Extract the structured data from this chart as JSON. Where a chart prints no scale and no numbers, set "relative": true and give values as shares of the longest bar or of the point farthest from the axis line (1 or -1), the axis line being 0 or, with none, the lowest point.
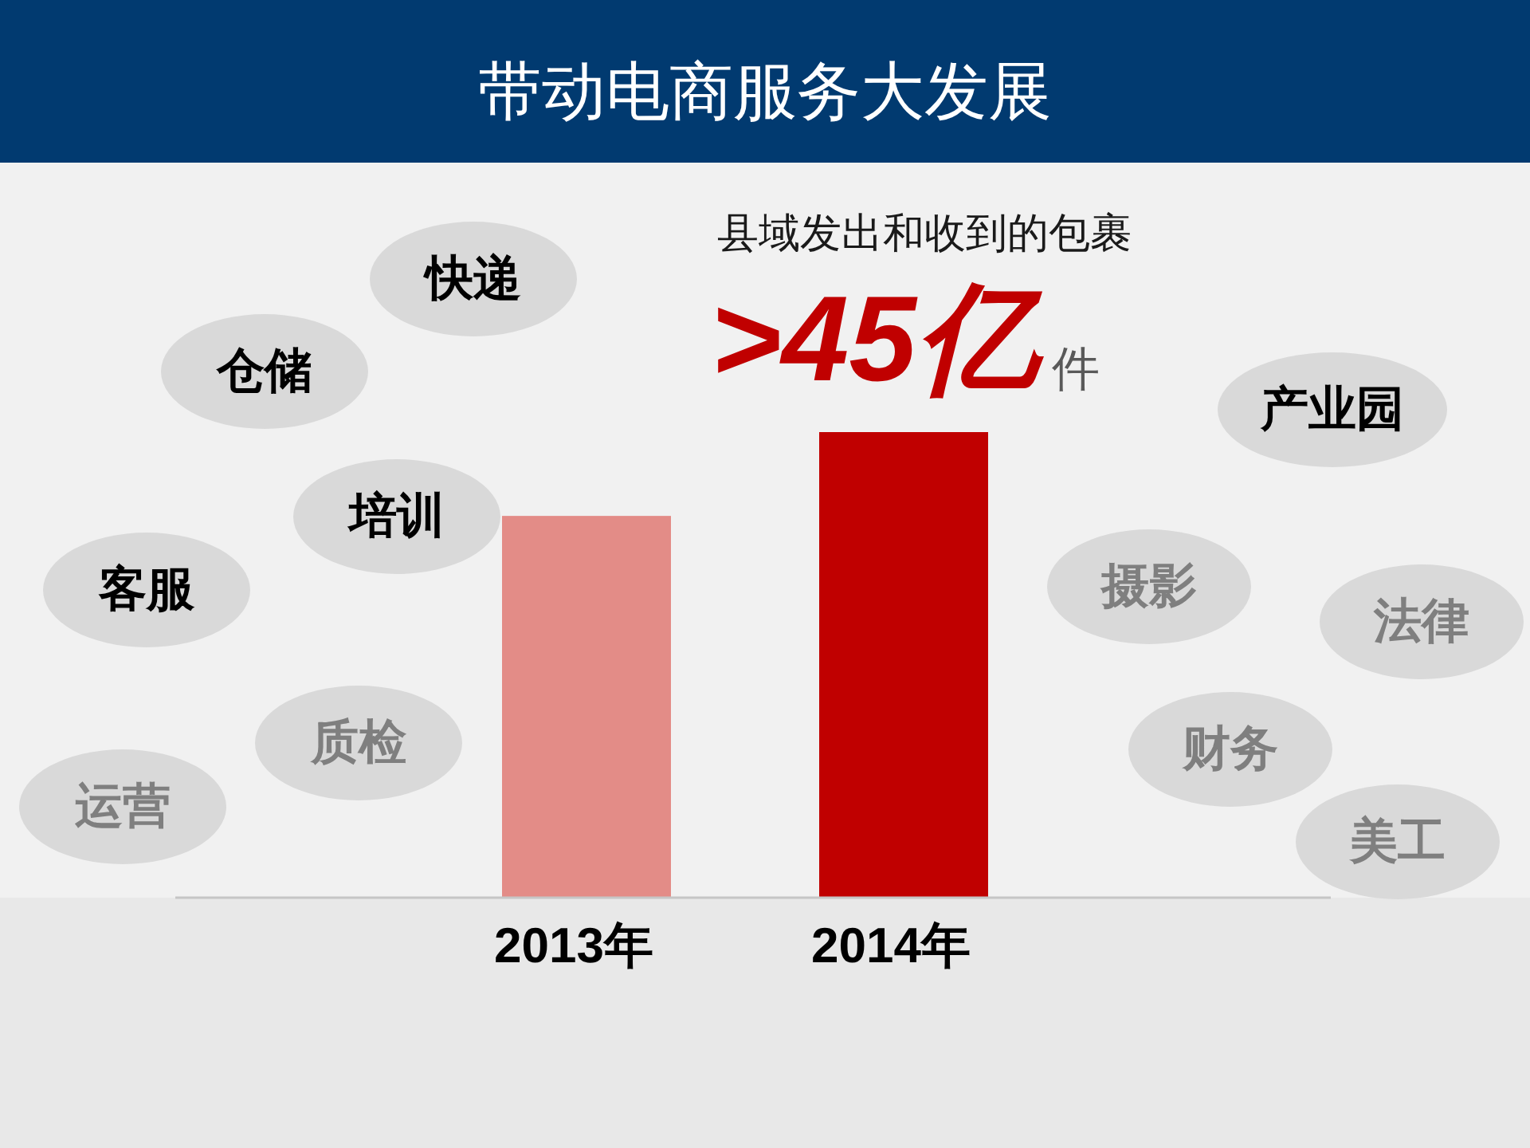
{
  "chart_data": {
    "type": "bar",
    "title": "带动电商服务大发展",
    "categories": [
      "2013年",
      "2014年"
    ],
    "values": [
      0.82,
      1
    ],
    "colors": [
      "#e38c87",
      "#c00000"
    ],
    "relative": true,
    "annotations": [
      "县域发出和收到的包裹",
      ">45亿",
      "件",
      "快递",
      "仓储",
      "培训",
      "客服",
      "质检",
      "运营",
      "产业园",
      "摄影",
      "法律",
      "财务",
      "美工"
    ]
  }
}
